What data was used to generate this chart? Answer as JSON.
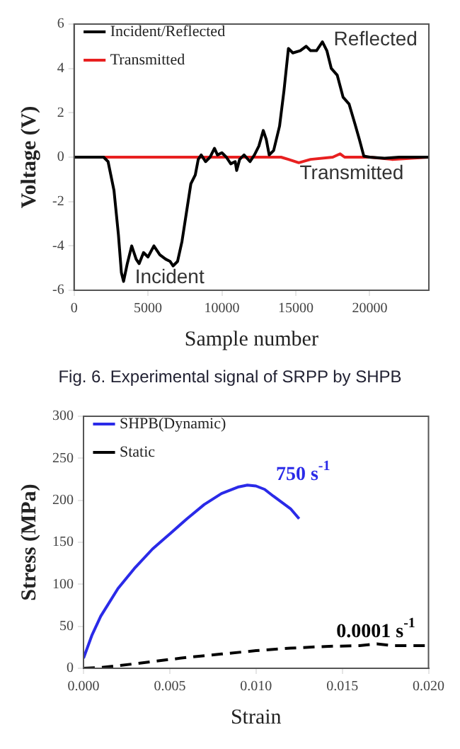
{
  "chart_data": [
    {
      "type": "line",
      "xlabel": "Sample number",
      "ylabel": "Voltage (V)",
      "xlim": [
        0,
        24000
      ],
      "xticks": [
        0,
        5000,
        10000,
        15000,
        20000
      ],
      "ylim": [
        -6,
        6
      ],
      "yticks": [
        -6,
        -4,
        -2,
        0,
        2,
        4,
        6
      ],
      "grid": false,
      "legend": "top left",
      "marker": "none",
      "series": [
        {
          "name": "Incident/Reflected",
          "color": "#000000",
          "x": [
            0,
            2000,
            2300,
            2700,
            3000,
            3200,
            3350,
            3600,
            3900,
            4200,
            4400,
            4700,
            5000,
            5400,
            5800,
            6200,
            6500,
            6700,
            7000,
            7300,
            7600,
            7900,
            8200,
            8400,
            8600,
            8900,
            9200,
            9500,
            9700,
            10000,
            10300,
            10600,
            10900,
            11000,
            11200,
            11500,
            11900,
            12200,
            12500,
            12800,
            13000,
            13200,
            13500,
            13900,
            14200,
            14500,
            14800,
            15300,
            15700,
            16000,
            16400,
            16800,
            17100,
            17400,
            17800,
            18200,
            18600,
            19000,
            19300,
            19600,
            20000,
            21000,
            22000,
            24000
          ],
          "values": [
            0,
            0,
            -0.2,
            -1.5,
            -3.5,
            -5.2,
            -5.6,
            -4.8,
            -4.0,
            -4.6,
            -4.8,
            -4.3,
            -4.5,
            -4.0,
            -4.4,
            -4.6,
            -4.7,
            -4.9,
            -4.7,
            -3.8,
            -2.5,
            -1.2,
            -0.8,
            -0.1,
            0.1,
            -0.2,
            0,
            0.4,
            0.1,
            0.2,
            0,
            -0.3,
            -0.2,
            -0.6,
            -0.1,
            0.1,
            -0.2,
            0.1,
            0.5,
            1.2,
            0.8,
            0.1,
            0.3,
            1.4,
            3.0,
            4.9,
            4.7,
            4.8,
            5.0,
            4.8,
            4.8,
            5.2,
            4.8,
            4.0,
            3.7,
            2.7,
            2.4,
            1.5,
            0.8,
            0.05,
            0,
            -0.05,
            0,
            0
          ]
        },
        {
          "name": "Transmitted",
          "color": "#e82020",
          "x": [
            0,
            14000,
            14500,
            15200,
            16000,
            17500,
            18000,
            18300,
            20000,
            21500,
            24000
          ],
          "values": [
            0,
            0,
            -0.1,
            -0.25,
            -0.1,
            0,
            0.15,
            0,
            0,
            -0.1,
            0
          ]
        }
      ],
      "annotations": [
        {
          "text": "Reflected",
          "x": 16800,
          "y": 5.2
        },
        {
          "text": "Incident",
          "x": 3350,
          "y": -5.6
        },
        {
          "text": "Transmitted",
          "x": 14500,
          "y": -0.1
        },
        "Fig. 6. Experimental signal of SRPP by SHPB"
      ]
    },
    {
      "type": "line",
      "xlabel": "Strain",
      "ylabel": "Stress (MPa)",
      "xlim": [
        0,
        0.02
      ],
      "xticks": [
        {
          "value": 0,
          "label": "0.000"
        },
        {
          "value": 0.005,
          "label": "0.005"
        },
        {
          "value": 0.01,
          "label": "0.010"
        },
        {
          "value": 0.015,
          "label": "0.015"
        },
        {
          "value": 0.02,
          "label": "0.020"
        }
      ],
      "ylim": [
        0,
        300
      ],
      "yticks": [
        0,
        50,
        100,
        150,
        200,
        250,
        300
      ],
      "grid": false,
      "legend": "top left",
      "marker": "none",
      "series": [
        {
          "name": "SHPB(Dynamic)",
          "color": "#2a2ae8",
          "line_style": "solid",
          "x": [
            0,
            0.0005,
            0.001,
            0.002,
            0.003,
            0.004,
            0.005,
            0.006,
            0.007,
            0.008,
            0.009,
            0.0095,
            0.01,
            0.0105,
            0.011,
            0.012,
            0.0125
          ],
          "values": [
            12,
            40,
            62,
            95,
            120,
            142,
            160,
            178,
            195,
            208,
            216,
            218,
            217,
            213,
            205,
            190,
            178
          ]
        },
        {
          "name": "Static",
          "color": "#000000",
          "line_style": "dashed",
          "x": [
            0,
            0.001,
            0.002,
            0.004,
            0.006,
            0.008,
            0.01,
            0.012,
            0.014,
            0.016,
            0.017,
            0.018,
            0.02
          ],
          "values": [
            0,
            1,
            3,
            8,
            13,
            17,
            21,
            24,
            26,
            27,
            29,
            27,
            27
          ]
        }
      ],
      "annotations": [
        {
          "text": "750 s$^{-1}$",
          "x": 0.0105,
          "y": 213
        },
        {
          "text": "0.0001 s$^{-1}$",
          "x": 0.014,
          "y": 26
        }
      ]
    }
  ]
}
